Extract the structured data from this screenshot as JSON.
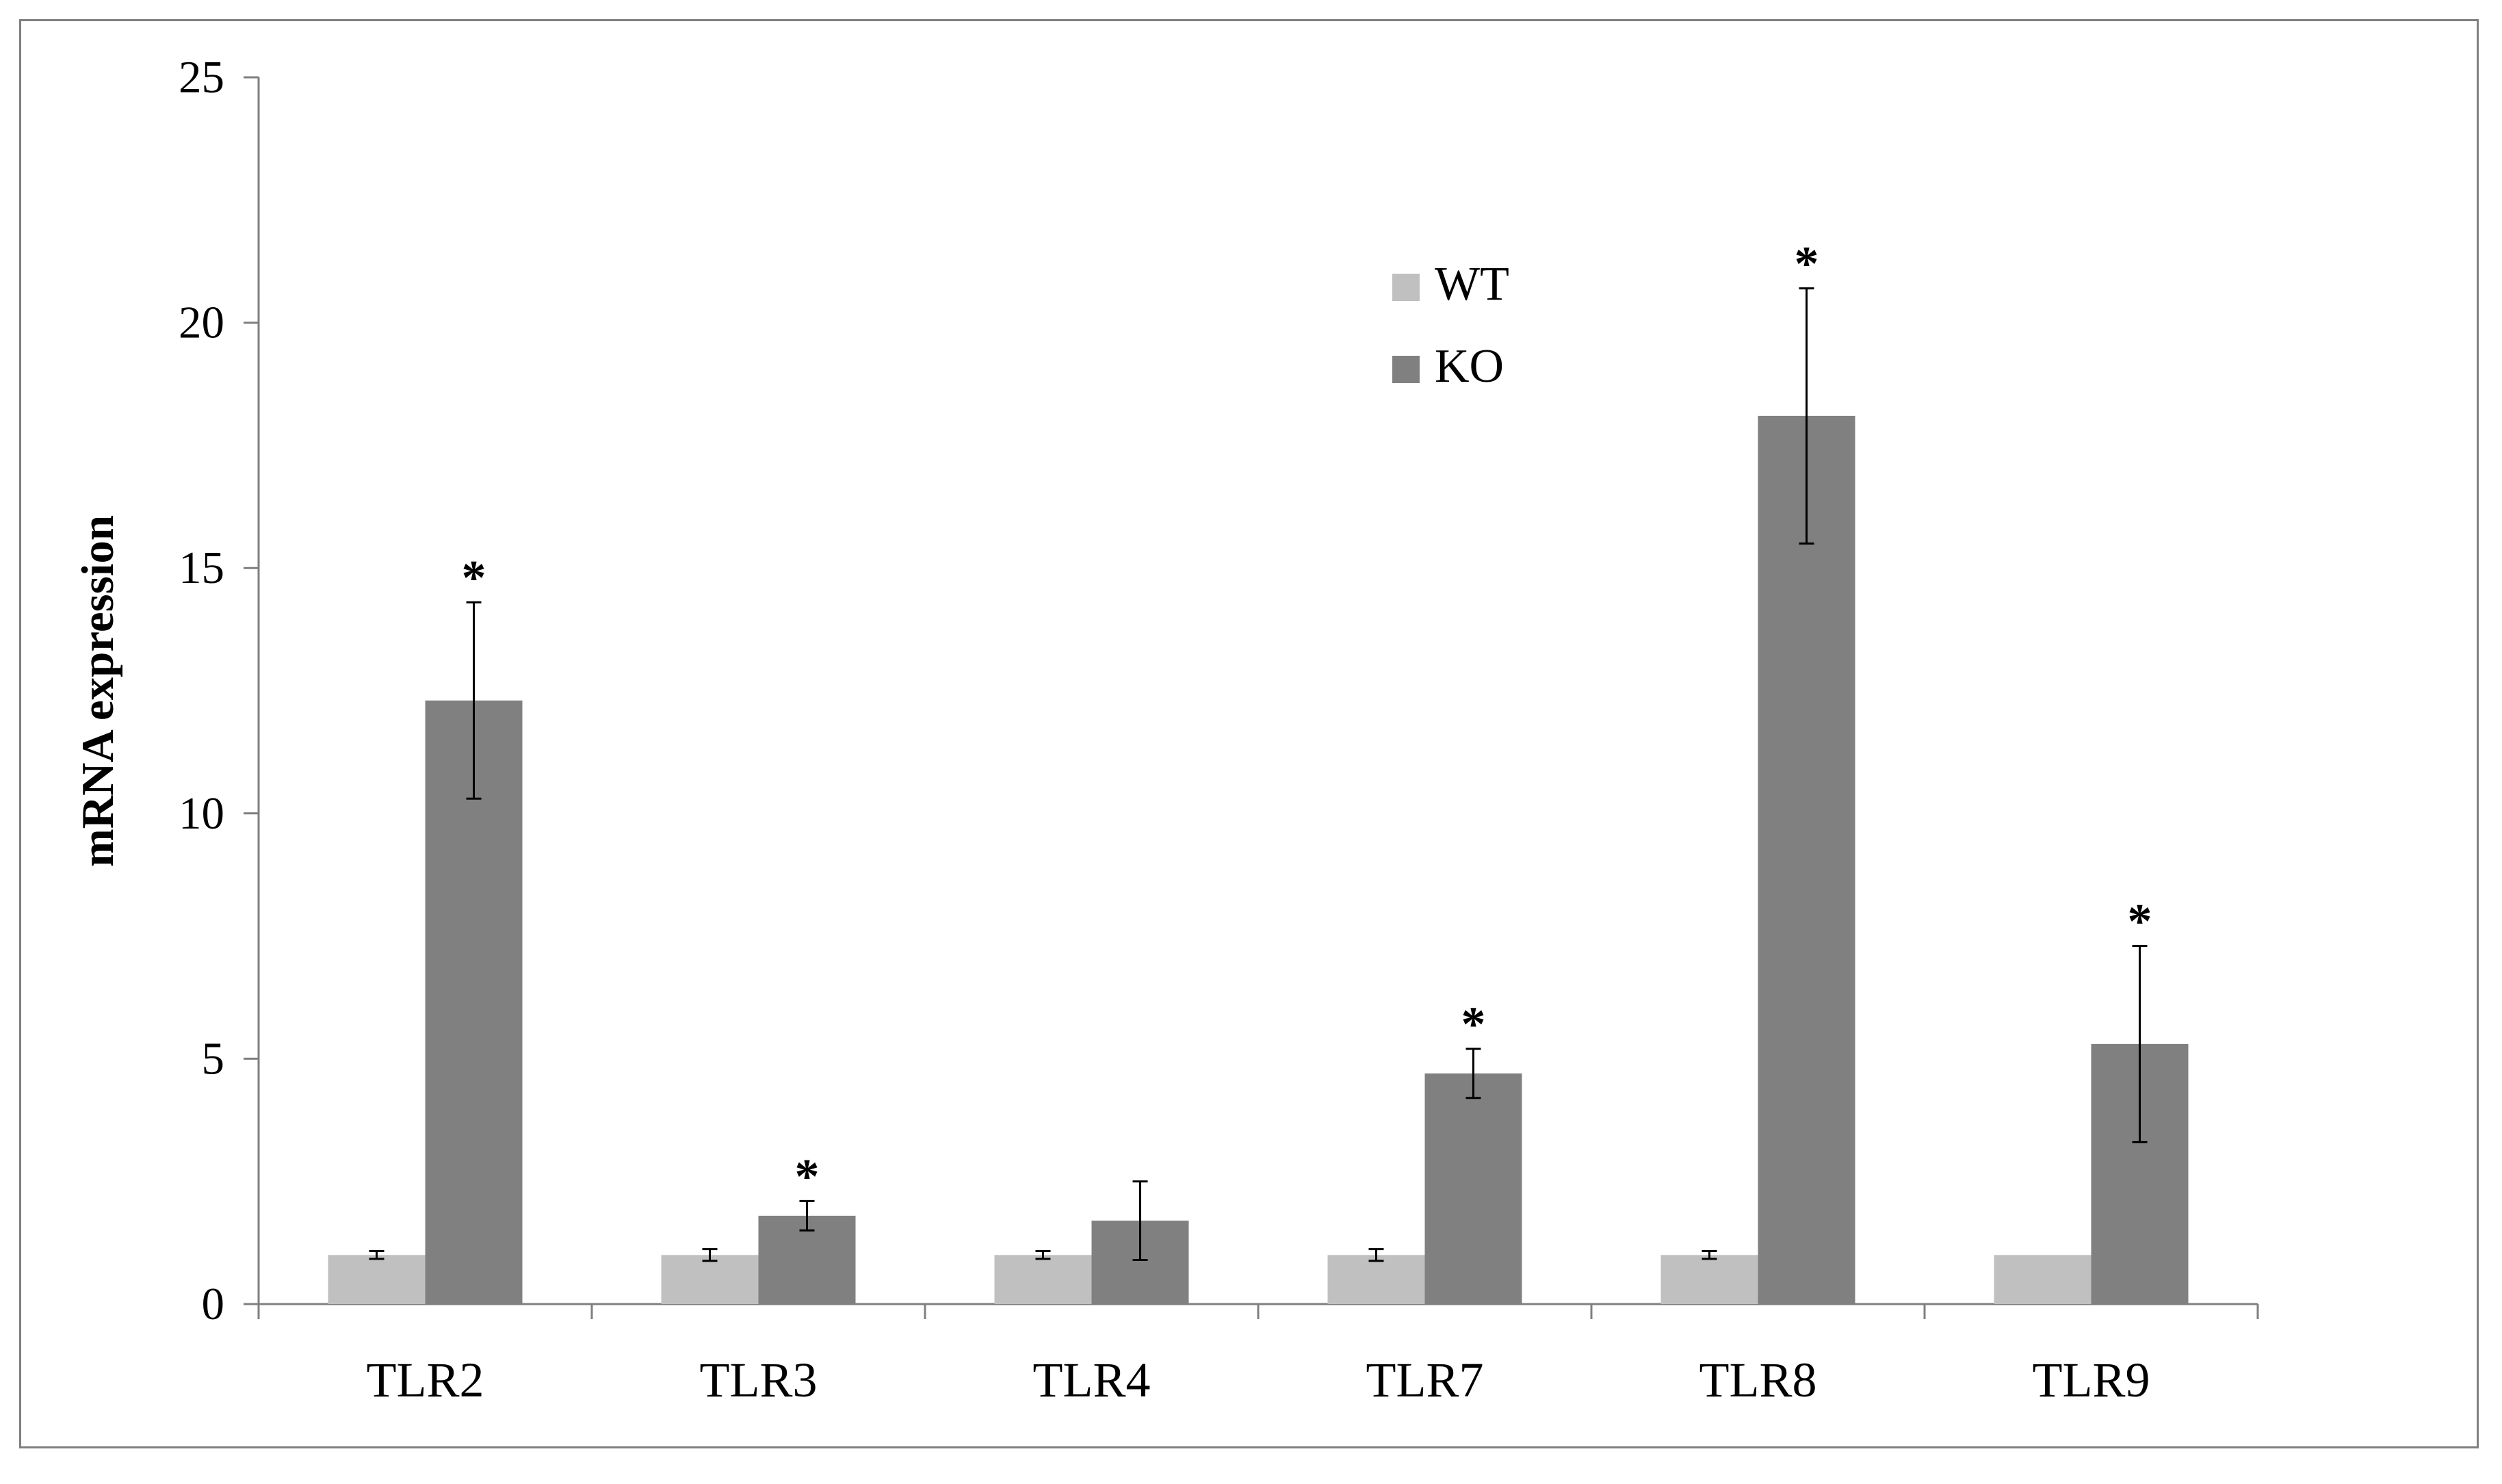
{
  "chart_data": {
    "type": "bar",
    "title": "",
    "xlabel": "",
    "ylabel": "mRNA expression",
    "ylim": [
      0,
      25
    ],
    "yticks": [
      0,
      5,
      10,
      15,
      20,
      25
    ],
    "grid": false,
    "legend_position": "top-center",
    "categories": [
      "TLR2",
      "TLR3",
      "TLR4",
      "TLR7",
      "TLR8",
      "TLR9"
    ],
    "series": [
      {
        "name": "WT",
        "color": "#c0c0c0",
        "values": [
          1.0,
          1.0,
          1.0,
          1.0,
          1.0,
          1.0
        ],
        "errors": [
          0.08,
          0.12,
          0.08,
          0.12,
          0.08,
          0.0
        ]
      },
      {
        "name": "KO",
        "color": "#808080",
        "values": [
          12.3,
          1.8,
          1.7,
          4.7,
          18.1,
          5.3
        ],
        "errors": [
          2.0,
          0.3,
          0.8,
          0.5,
          2.6,
          2.0
        ]
      }
    ],
    "significance": [
      "*",
      "*",
      "",
      "*",
      "*",
      "*"
    ]
  }
}
